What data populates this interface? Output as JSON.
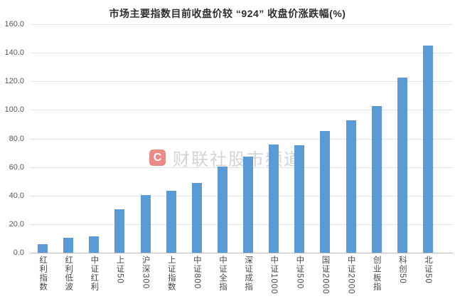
{
  "title": "市场主要指数目前收盘价较 “924” 收盘价涨跌幅(%)",
  "watermark": {
    "logo_letter": "C",
    "text": "财联社股市频道"
  },
  "chart_data": {
    "type": "bar",
    "title": "市场主要指数目前收盘价较 “924” 收盘价涨跌幅(%)",
    "categories": [
      "红利指数",
      "红利低波",
      "中证红利",
      "上证50",
      "沪深300",
      "上证指数",
      "中证800",
      "中证全指",
      "深证成指",
      "中证1000",
      "中证500",
      "国证2000",
      "中证2000",
      "创业板指",
      "科创50",
      "北证50"
    ],
    "values": [
      6,
      10.5,
      11.5,
      30.5,
      40.5,
      43.5,
      49,
      60.5,
      67.5,
      76,
      75.5,
      85,
      92.5,
      102.5,
      122.5,
      145
    ],
    "xlabel": "",
    "ylabel": "",
    "ylim": [
      0,
      160
    ],
    "ytick_step": 20,
    "ytick_labels": [
      "0.0",
      "20.0",
      "40.0",
      "60.0",
      "80.0",
      "100.0",
      "120.0",
      "140.0",
      "160.0"
    ],
    "grid": true,
    "legend_position": "none",
    "bar_color": "#5B9BD5",
    "gridline_color": "#e4e4e4",
    "axis_line_color": "#bdbdbd",
    "tick_label_color": "#595959"
  }
}
